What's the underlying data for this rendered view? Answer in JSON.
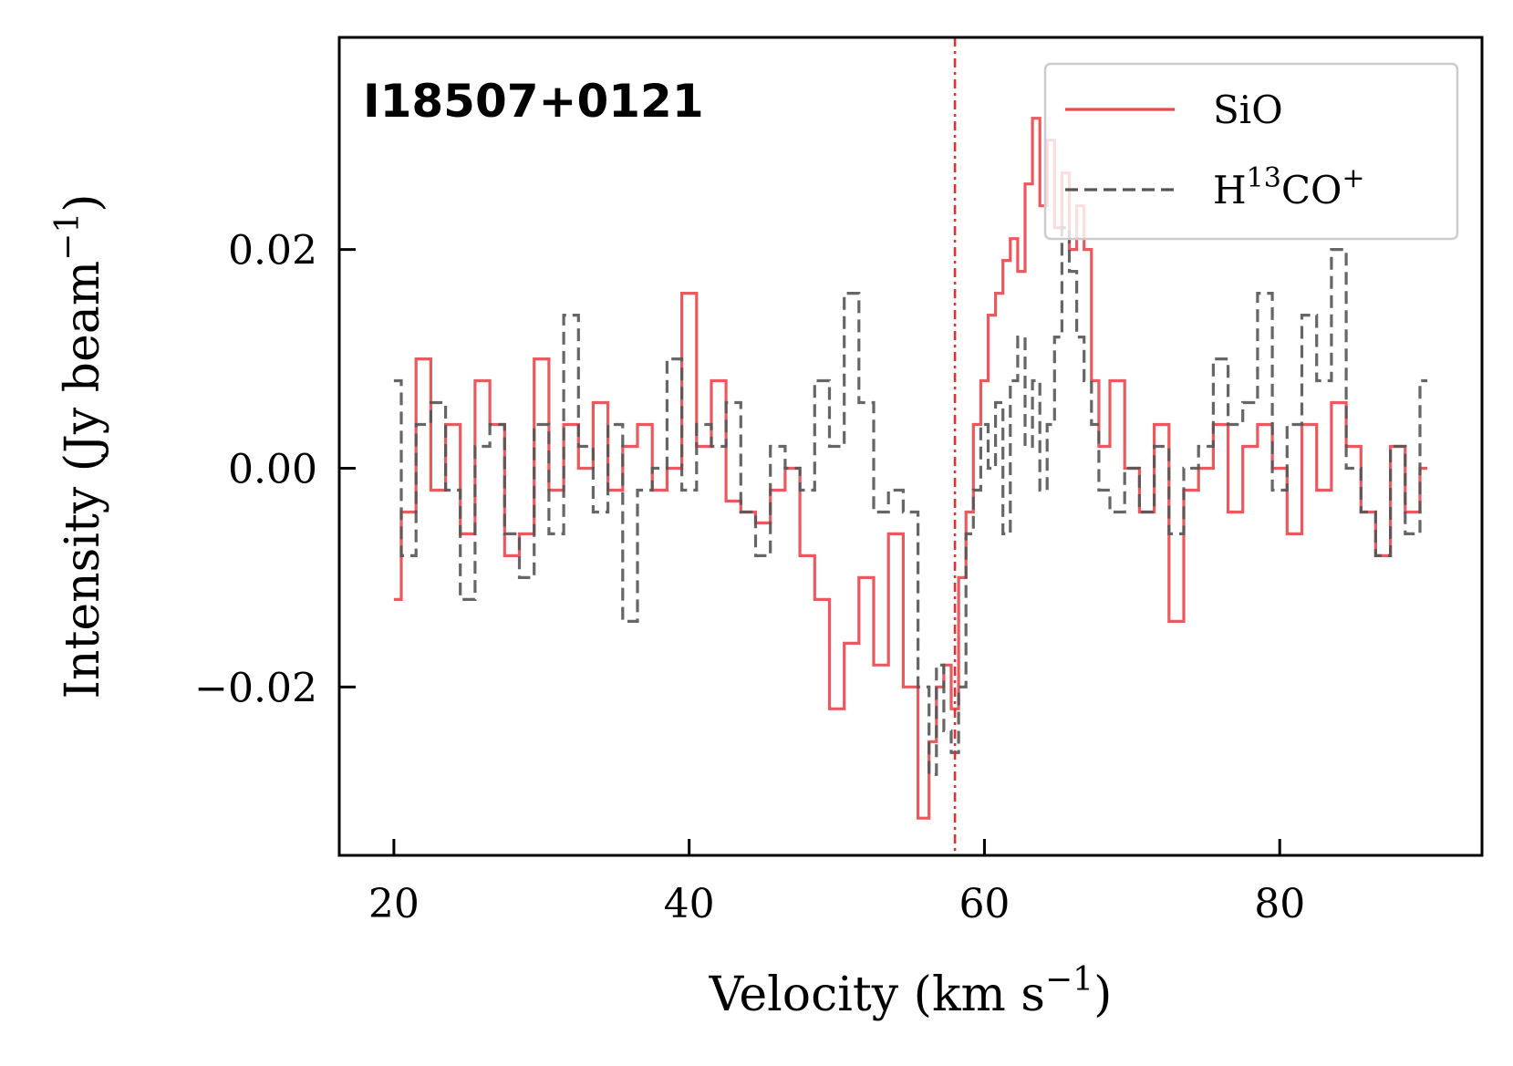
{
  "chart_data": {
    "type": "line",
    "drawstyle": "steps",
    "panel_label": "I18507+0121",
    "xlabel": {
      "main": "Velocity (km s",
      "sup": "−1",
      "end": ")"
    },
    "ylabel": {
      "main": "Intensity (Jy beam",
      "sup": "−1",
      "end": ")"
    },
    "xlim": [
      16.3,
      93.7
    ],
    "ylim": [
      -0.0354,
      0.0394
    ],
    "x_ticks": [
      20,
      40,
      60,
      80
    ],
    "x_tick_labels": [
      "20",
      "40",
      "60",
      "80"
    ],
    "y_ticks": [
      -0.02,
      0.0,
      0.02
    ],
    "y_tick_labels": [
      "−0.02",
      "0.00",
      "0.02"
    ],
    "grid": false,
    "legend": {
      "placement": "top-right",
      "entries": [
        {
          "series": 0,
          "text": "SiO"
        },
        {
          "series": 1,
          "text": "H",
          "sup1": "13",
          "mid": "CO",
          "sup2": "+"
        }
      ]
    },
    "vline": {
      "x": 58.0,
      "color": "#e03030",
      "style": "dashdot"
    },
    "series": [
      {
        "color": "#e8474c",
        "dash": "solid",
        "x": [
          20.0,
          21.0,
          22.0,
          23.0,
          24.0,
          25.0,
          26.0,
          27.0,
          28.0,
          29.0,
          30.0,
          31.0,
          32.0,
          33.0,
          34.0,
          35.0,
          36.0,
          37.0,
          38.0,
          39.0,
          40.0,
          41.0,
          42.0,
          43.0,
          44.0,
          45.0,
          46.0,
          47.0,
          48.0,
          49.0,
          50.0,
          51.0,
          52.0,
          53.0,
          54.0,
          55.0,
          56.0,
          56.5,
          57.0,
          57.5,
          58.0,
          58.5,
          59.0,
          59.5,
          60.0,
          60.5,
          61.0,
          61.5,
          62.0,
          62.5,
          63.0,
          63.5,
          64.0,
          64.5,
          65.0,
          65.5,
          66.0,
          66.5,
          67.0,
          67.5,
          68.0,
          69.0,
          70.0,
          71.0,
          72.0,
          73.0,
          74.0,
          75.0,
          76.0,
          77.0,
          78.0,
          79.0,
          80.0,
          81.0,
          82.0,
          83.0,
          84.0,
          85.0,
          86.0,
          87.0,
          88.0,
          89.0,
          90.0
        ],
        "y": [
          -0.012,
          -0.004,
          0.01,
          -0.002,
          0.004,
          -0.006,
          0.008,
          0.004,
          -0.008,
          -0.006,
          0.01,
          -0.002,
          0.004,
          0.0,
          0.006,
          -0.002,
          0.002,
          0.004,
          -0.002,
          0.0,
          0.016,
          0.002,
          0.008,
          -0.003,
          -0.004,
          -0.005,
          -0.002,
          0.0,
          -0.008,
          -0.012,
          -0.022,
          -0.016,
          -0.01,
          -0.018,
          -0.006,
          -0.02,
          -0.032,
          -0.025,
          -0.02,
          -0.018,
          -0.022,
          -0.01,
          -0.004,
          0.004,
          0.008,
          0.014,
          0.016,
          0.019,
          0.021,
          0.018,
          0.026,
          0.032,
          0.024,
          0.03,
          0.022,
          0.027,
          0.02,
          0.024,
          0.02,
          0.008,
          0.002,
          0.008,
          0.0,
          -0.004,
          0.004,
          -0.014,
          -0.002,
          0.0,
          0.004,
          -0.004,
          0.002,
          0.004,
          0.0,
          -0.006,
          0.004,
          -0.002,
          0.006,
          0.002,
          -0.004,
          -0.008,
          0.002,
          -0.004,
          0.0
        ]
      },
      {
        "color": "#555555",
        "dash": "dashed",
        "x": [
          20.0,
          21.0,
          22.0,
          23.0,
          24.0,
          25.0,
          26.0,
          27.0,
          28.0,
          29.0,
          30.0,
          31.0,
          32.0,
          33.0,
          34.0,
          35.0,
          36.0,
          37.0,
          38.0,
          39.0,
          40.0,
          41.0,
          42.0,
          43.0,
          44.0,
          45.0,
          46.0,
          47.0,
          48.0,
          49.0,
          50.0,
          51.0,
          52.0,
          53.0,
          54.0,
          55.0,
          56.0,
          56.5,
          57.0,
          57.5,
          58.0,
          58.5,
          59.0,
          59.5,
          60.0,
          60.5,
          61.0,
          61.5,
          62.0,
          62.5,
          63.0,
          63.5,
          64.0,
          64.5,
          65.0,
          65.5,
          66.0,
          66.5,
          67.0,
          67.5,
          68.0,
          69.0,
          70.0,
          71.0,
          72.0,
          73.0,
          74.0,
          75.0,
          76.0,
          77.0,
          78.0,
          79.0,
          80.0,
          81.0,
          82.0,
          83.0,
          84.0,
          85.0,
          86.0,
          87.0,
          88.0,
          89.0,
          90.0
        ],
        "y": [
          0.008,
          -0.008,
          0.004,
          0.006,
          -0.002,
          -0.012,
          0.002,
          0.004,
          -0.006,
          -0.01,
          0.004,
          -0.006,
          0.014,
          0.002,
          -0.004,
          0.004,
          -0.014,
          -0.002,
          0.0,
          0.01,
          -0.002,
          0.004,
          0.002,
          0.006,
          -0.004,
          -0.008,
          0.002,
          0.0,
          -0.002,
          0.008,
          0.002,
          0.016,
          0.006,
          -0.004,
          -0.002,
          -0.004,
          -0.02,
          -0.028,
          -0.018,
          -0.024,
          -0.026,
          -0.02,
          -0.006,
          -0.002,
          0.004,
          0.0,
          0.006,
          -0.006,
          0.008,
          0.012,
          0.002,
          0.008,
          -0.002,
          0.004,
          0.012,
          0.022,
          0.018,
          0.012,
          0.008,
          0.004,
          -0.002,
          -0.004,
          0.0,
          -0.004,
          0.002,
          -0.006,
          0.0,
          0.002,
          0.01,
          0.004,
          0.006,
          0.016,
          -0.002,
          0.004,
          0.014,
          0.008,
          0.02,
          0.0,
          -0.004,
          -0.008,
          0.002,
          -0.006,
          0.008
        ]
      }
    ]
  }
}
